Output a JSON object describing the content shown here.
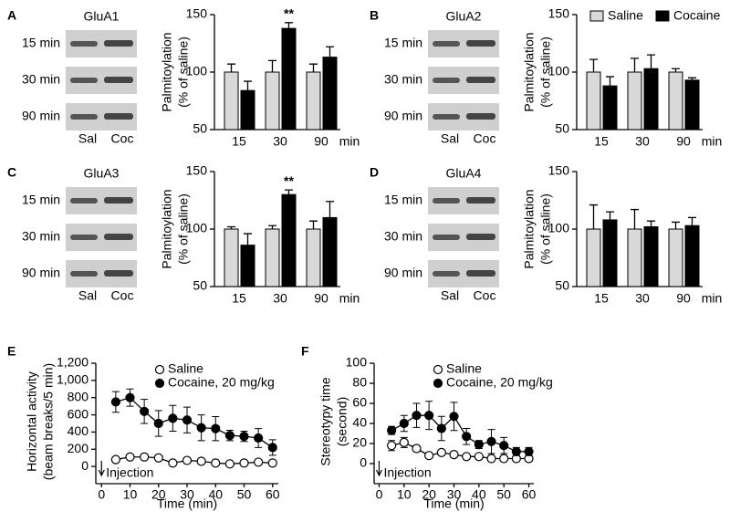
{
  "chart_data": [
    {
      "type": "bar",
      "panel": "A",
      "blot": {
        "label": "GluA1",
        "rows": [
          "15 min",
          "30 min",
          "90 min"
        ],
        "lanes": [
          "Sal",
          "Coc"
        ]
      },
      "ylabel": [
        "Palmitoylation",
        "(% of saline)"
      ],
      "categories": [
        "15",
        "30",
        "90"
      ],
      "xlabel": "min",
      "ylim": [
        50,
        150
      ],
      "yticks": [
        50,
        100,
        150
      ],
      "legend": false,
      "series": [
        {
          "name": "Saline",
          "color": "#d9d9d9",
          "values": [
            100,
            100,
            100
          ],
          "error": [
            7,
            10,
            7
          ]
        },
        {
          "name": "Cocaine",
          "color": "#000000",
          "values": [
            84,
            138,
            113
          ],
          "error": [
            8,
            5,
            9
          ]
        }
      ],
      "annotations": [
        {
          "text": "**",
          "series": 1,
          "index": 1
        }
      ]
    },
    {
      "type": "bar",
      "panel": "B",
      "blot": {
        "label": "GluA2",
        "rows": [
          "15 min",
          "30 min",
          "90 min"
        ],
        "lanes": [
          "Sal",
          "Coc"
        ]
      },
      "ylabel": [
        "Palmitoylation",
        "(% of saline)"
      ],
      "categories": [
        "15",
        "30",
        "90"
      ],
      "xlabel": "min",
      "ylim": [
        50,
        150
      ],
      "yticks": [
        50,
        100,
        150
      ],
      "legend": true,
      "series": [
        {
          "name": "Saline",
          "color": "#d9d9d9",
          "values": [
            100,
            100,
            100
          ],
          "error": [
            11,
            12,
            3
          ]
        },
        {
          "name": "Cocaine",
          "color": "#000000",
          "values": [
            88,
            103,
            93
          ],
          "error": [
            8,
            12,
            2
          ]
        }
      ]
    },
    {
      "type": "bar",
      "panel": "C",
      "blot": {
        "label": "GluA3",
        "rows": [
          "15 min",
          "30 min",
          "90 min"
        ],
        "lanes": [
          "Sal",
          "Coc"
        ]
      },
      "ylabel": [
        "Palmitoylation",
        "(% of saline)"
      ],
      "categories": [
        "15",
        "30",
        "90"
      ],
      "xlabel": "min",
      "ylim": [
        50,
        150
      ],
      "yticks": [
        50,
        100,
        150
      ],
      "legend": false,
      "series": [
        {
          "name": "Saline",
          "color": "#d9d9d9",
          "values": [
            100,
            100,
            100
          ],
          "error": [
            2,
            3,
            7
          ]
        },
        {
          "name": "Cocaine",
          "color": "#000000",
          "values": [
            86,
            130,
            110
          ],
          "error": [
            10,
            4,
            14
          ]
        }
      ],
      "annotations": [
        {
          "text": "**",
          "series": 1,
          "index": 1
        }
      ]
    },
    {
      "type": "bar",
      "panel": "D",
      "blot": {
        "label": "GluA4",
        "rows": [
          "15 min",
          "30 min",
          "90 min"
        ],
        "lanes": [
          "Sal",
          "Coc"
        ]
      },
      "ylabel": [
        "Palmitoylation",
        "(% of saline)"
      ],
      "categories": [
        "15",
        "30",
        "90"
      ],
      "xlabel": "min",
      "ylim": [
        50,
        150
      ],
      "yticks": [
        50,
        100,
        150
      ],
      "legend": false,
      "series": [
        {
          "name": "Saline",
          "color": "#d9d9d9",
          "values": [
            100,
            100,
            100
          ],
          "error": [
            21,
            17,
            6
          ]
        },
        {
          "name": "Cocaine",
          "color": "#000000",
          "values": [
            108,
            102,
            103
          ],
          "error": [
            7,
            5,
            7
          ]
        }
      ]
    },
    {
      "type": "line",
      "panel": "E",
      "ylabel": [
        "Horizontal activity",
        "(beam breaks/5 min)"
      ],
      "xlabel": "Time (min)",
      "annotation": "Injection",
      "xlim": [
        -2,
        62
      ],
      "xticks": [
        0,
        10,
        20,
        30,
        40,
        50,
        60
      ],
      "ylim": [
        -200,
        1200
      ],
      "yticks": [
        0,
        200,
        400,
        600,
        800,
        {
          "value": 1000,
          "label": "1,000"
        },
        {
          "value": 1200,
          "label": "1,200"
        }
      ],
      "x": [
        5,
        10,
        15,
        20,
        25,
        30,
        35,
        40,
        45,
        50,
        55,
        60
      ],
      "series": [
        {
          "name": "Saline",
          "color": "#ffffff",
          "values": [
            80,
            110,
            110,
            100,
            40,
            70,
            60,
            40,
            30,
            40,
            50,
            40
          ],
          "error": [
            20,
            20,
            20,
            20,
            15,
            15,
            15,
            15,
            15,
            15,
            15,
            15
          ]
        },
        {
          "name": "Cocaine, 20 mg/kg",
          "color": "#000000",
          "values": [
            750,
            800,
            640,
            500,
            560,
            540,
            450,
            440,
            360,
            350,
            330,
            220
          ],
          "error": [
            120,
            100,
            140,
            150,
            150,
            150,
            150,
            140,
            60,
            60,
            110,
            90
          ]
        }
      ]
    },
    {
      "type": "line",
      "panel": "F",
      "ylabel": [
        "Stereotypy time",
        "(second)"
      ],
      "xlabel": "Time (min)",
      "annotation": "Injection",
      "xlim": [
        -2,
        62
      ],
      "xticks": [
        0,
        10,
        20,
        30,
        40,
        50,
        60
      ],
      "ylim": [
        -20,
        100
      ],
      "yticks": [
        0,
        20,
        40,
        60,
        80,
        100
      ],
      "x": [
        5,
        10,
        15,
        20,
        25,
        30,
        35,
        40,
        45,
        50,
        55,
        60
      ],
      "series": [
        {
          "name": "Saline",
          "color": "#ffffff",
          "values": [
            18,
            21,
            15,
            8,
            11,
            9,
            7,
            7,
            5,
            5,
            5,
            5
          ],
          "error": [
            5,
            5,
            3,
            2,
            2,
            2,
            2,
            2,
            1,
            1,
            1,
            1
          ]
        },
        {
          "name": "Cocaine, 20 mg/kg",
          "color": "#000000",
          "values": [
            33,
            40,
            48,
            48,
            35,
            47,
            27,
            19,
            22,
            18,
            12,
            12
          ],
          "error": [
            4,
            8,
            12,
            14,
            12,
            14,
            8,
            4,
            12,
            8,
            4,
            4
          ]
        }
      ]
    }
  ]
}
